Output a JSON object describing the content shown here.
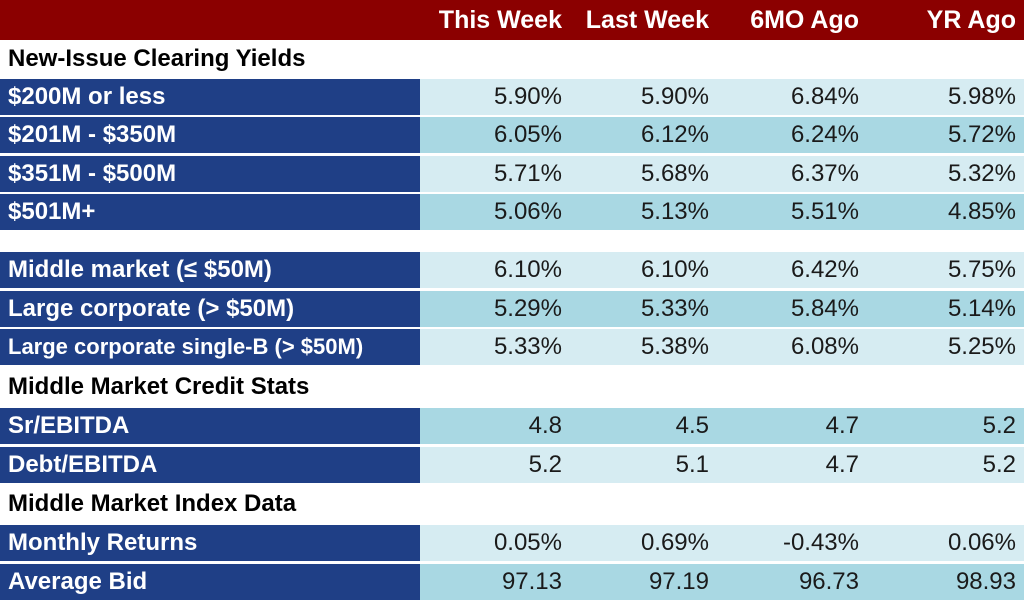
{
  "colors": {
    "header_bg": "#8b0000",
    "label_bg": "#1f3f86",
    "row_light": "#d6ecf2",
    "row_dark": "#a9d8e3"
  },
  "columns": [
    "This Week",
    "Last Week",
    "6MO Ago",
    "YR Ago"
  ],
  "sections": [
    {
      "title": "New-Issue Clearing Yields",
      "rows": [
        {
          "label": "$200M or less",
          "values": [
            "5.90%",
            "5.90%",
            "6.84%",
            "5.98%"
          ]
        },
        {
          "label": "$201M - $350M",
          "values": [
            "6.05%",
            "6.12%",
            "6.24%",
            "5.72%"
          ]
        },
        {
          "label": "$351M - $500M",
          "values": [
            "5.71%",
            "5.68%",
            "6.37%",
            "5.32%"
          ]
        },
        {
          "label": "$501M+",
          "values": [
            "5.06%",
            "5.13%",
            "5.51%",
            "4.85%"
          ]
        }
      ]
    },
    {
      "title": "",
      "rows": [
        {
          "label": "Middle market (≤ $50M)",
          "values": [
            "6.10%",
            "6.10%",
            "6.42%",
            "5.75%"
          ]
        },
        {
          "label": "Large corporate (> $50M)",
          "values": [
            "5.29%",
            "5.33%",
            "5.84%",
            "5.14%"
          ]
        },
        {
          "label": "Large corporate single-B (> $50M)",
          "values": [
            "5.33%",
            "5.38%",
            "6.08%",
            "5.25%"
          ]
        }
      ]
    },
    {
      "title": "Middle Market Credit Stats",
      "rows": [
        {
          "label": "Sr/EBITDA",
          "values": [
            "4.8",
            "4.5",
            "4.7",
            "5.2"
          ]
        },
        {
          "label": "Debt/EBITDA",
          "values": [
            "5.2",
            "5.1",
            "4.7",
            "5.2"
          ]
        }
      ]
    },
    {
      "title": "Middle Market Index Data",
      "rows": [
        {
          "label": "Monthly Returns",
          "values": [
            "0.05%",
            "0.69%",
            "-0.43%",
            "0.06%"
          ]
        },
        {
          "label": "Average Bid",
          "values": [
            "97.13",
            "97.19",
            "96.73",
            "98.93"
          ]
        }
      ]
    }
  ]
}
